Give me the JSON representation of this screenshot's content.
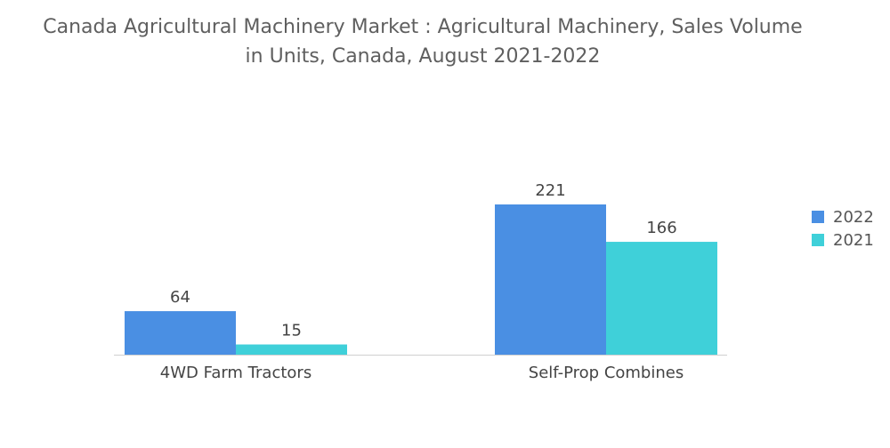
{
  "title_line1": "Canada Agricultural Machinery Market : Agricultural Machinery, Sales Volume",
  "title_line2": "in Units, Canada, August 2021-2022",
  "chart_data": {
    "type": "bar",
    "title": "Canada Agricultural Machinery Market : Agricultural Machinery, Sales Volume in Units, Canada, August 2021-2022",
    "categories": [
      "4WD Farm Tractors",
      "Self-Prop Combines"
    ],
    "series": [
      {
        "name": "2022",
        "values": [
          64,
          221
        ],
        "color": "#4a8fe3"
      },
      {
        "name": "2021",
        "values": [
          15,
          166
        ],
        "color": "#3fd0d9"
      }
    ],
    "ylim": [
      0,
      221
    ],
    "grid": false,
    "legend_position": "right"
  }
}
